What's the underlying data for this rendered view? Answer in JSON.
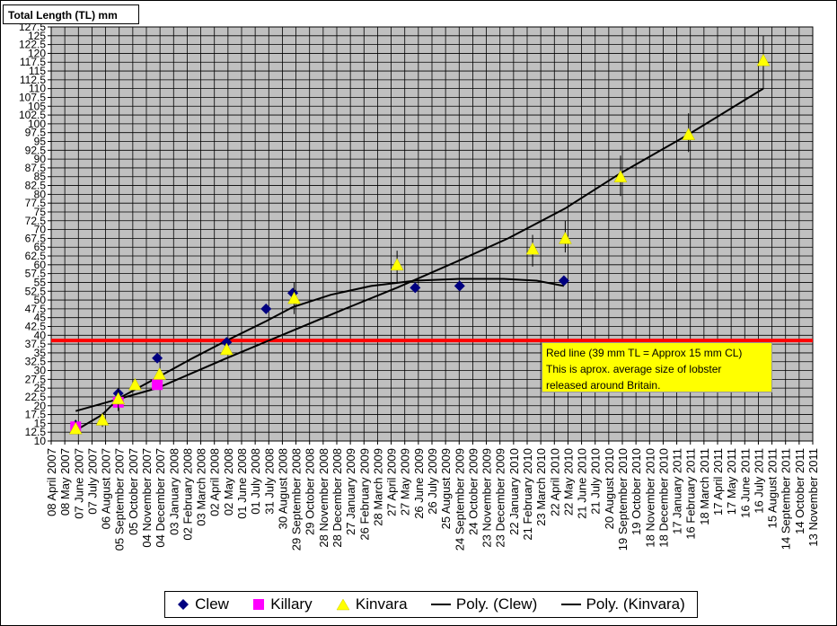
{
  "chart_data": {
    "type": "scatter",
    "ylabel": "Total Length (TL) mm",
    "xlabel": "",
    "ylim": [
      10,
      127.5
    ],
    "ystep": 2.5,
    "x_start": "2007-04-08",
    "x_end": "2011-11-13",
    "xtick_labels": [
      "08 April 2007",
      "08 May 2007",
      "07 June 2007",
      "07 July 2007",
      "06 August 2007",
      "05 September 2007",
      "05 October 2007",
      "04 November 2007",
      "04 December 2007",
      "03 January 2008",
      "02 February 2008",
      "03 March 2008",
      "02 April 2008",
      "02 May 2008",
      "01 June 2008",
      "01 July 2008",
      "31 July 2008",
      "30 August 2008",
      "29 September 2008",
      "29 October 2008",
      "28 November 2008",
      "28 December 2008",
      "27 January 2009",
      "26 February 2009",
      "28 March 2009",
      "27 April 2009",
      "27 May 2009",
      "26 June 2009",
      "26 July 2009",
      "25 August 2009",
      "24 September 2009",
      "24 October 2009",
      "23 November 2009",
      "23 December 2009",
      "22 January 2010",
      "21 February 2010",
      "23 March 2010",
      "22 April 2010",
      "22 May 2010",
      "21 June 2010",
      "21 July 2010",
      "20 August 2010",
      "19 September 2010",
      "19 October 2010",
      "18 November 2010",
      "18 December 2010",
      "17 January 2011",
      "16 February 2011",
      "18 March 2011",
      "17 April 2011",
      "17 May 2011",
      "16 June 2011",
      "16 July 2011",
      "15 August 2011",
      "14 September 2011",
      "14 October 2011",
      "13 November 2011"
    ],
    "grid": true,
    "legend_position": "bottom",
    "series": [
      {
        "name": "Clew",
        "marker": "diamond",
        "color": "#000080",
        "points": [
          {
            "x": "2007-06-01",
            "y": 14.5
          },
          {
            "x": "2007-09-03",
            "y": 23.5
          },
          {
            "x": "2007-11-28",
            "y": 33.5
          },
          {
            "x": "2008-04-29",
            "y": 38
          },
          {
            "x": "2008-07-25",
            "y": 47.5
          },
          {
            "x": "2008-09-22",
            "y": 52
          },
          {
            "x": "2009-06-19",
            "y": 53.5
          },
          {
            "x": "2009-09-25",
            "y": 54
          },
          {
            "x": "2010-05-13",
            "y": 55.5
          }
        ]
      },
      {
        "name": "Killary",
        "marker": "square",
        "color": "#ff00ff",
        "points": [
          {
            "x": "2007-06-01",
            "y": 14
          },
          {
            "x": "2007-09-03",
            "y": 21
          },
          {
            "x": "2007-11-28",
            "y": 26
          }
        ]
      },
      {
        "name": "Kinvara",
        "marker": "triangle",
        "color": "#ffff00",
        "points": [
          {
            "x": "2007-06-01",
            "y": 13.5,
            "err": [
              12,
              16
            ]
          },
          {
            "x": "2007-07-30",
            "y": 16,
            "err": [
              14,
              18
            ]
          },
          {
            "x": "2007-09-03",
            "y": 22,
            "err": [
              18.5,
              25
            ]
          },
          {
            "x": "2007-10-10",
            "y": 26
          },
          {
            "x": "2007-12-03",
            "y": 29
          },
          {
            "x": "2008-04-29",
            "y": 36
          },
          {
            "x": "2008-09-25",
            "y": 50.5,
            "err": [
              46,
              55
            ]
          },
          {
            "x": "2009-05-10",
            "y": 60,
            "err": [
              55,
              64
            ]
          },
          {
            "x": "2010-03-05",
            "y": 64.5,
            "err": [
              59.5,
              68.5
            ]
          },
          {
            "x": "2010-05-16",
            "y": 67.5,
            "err": [
              63.5,
              72.5
            ]
          },
          {
            "x": "2010-09-15",
            "y": 85,
            "err": [
              79.5,
              91
            ]
          },
          {
            "x": "2011-02-12",
            "y": 97,
            "err": [
              92,
              103
            ]
          },
          {
            "x": "2011-07-27",
            "y": 118,
            "err": [
              110,
              125
            ]
          }
        ]
      }
    ],
    "trendlines": [
      {
        "name": "Poly. (Clew)",
        "color": "#000000",
        "points": [
          {
            "x": "2007-06-01",
            "y": 13
          },
          {
            "x": "2007-07-30",
            "y": 17.5
          },
          {
            "x": "2007-09-03",
            "y": 22
          },
          {
            "x": "2007-11-28",
            "y": 28
          },
          {
            "x": "2008-02-14",
            "y": 33.5
          },
          {
            "x": "2008-04-29",
            "y": 38.5
          },
          {
            "x": "2008-07-25",
            "y": 44
          },
          {
            "x": "2008-09-22",
            "y": 48
          },
          {
            "x": "2008-12-15",
            "y": 51.5
          },
          {
            "x": "2009-03-14",
            "y": 54
          },
          {
            "x": "2009-06-19",
            "y": 55.5
          },
          {
            "x": "2009-09-25",
            "y": 56
          },
          {
            "x": "2009-12-31",
            "y": 56
          },
          {
            "x": "2010-03-14",
            "y": 55.5
          },
          {
            "x": "2010-05-13",
            "y": 54
          }
        ]
      },
      {
        "name": "Poly. (Kinvara)",
        "color": "#000000",
        "points": [
          {
            "x": "2007-06-01",
            "y": 18.5
          },
          {
            "x": "2007-11-28",
            "y": 25
          },
          {
            "x": "2008-04-29",
            "y": 33.5
          },
          {
            "x": "2008-09-25",
            "y": 41.5
          },
          {
            "x": "2009-01-15",
            "y": 47.5
          },
          {
            "x": "2009-05-10",
            "y": 53.5
          },
          {
            "x": "2009-09-20",
            "y": 61
          },
          {
            "x": "2010-01-10",
            "y": 67.5
          },
          {
            "x": "2010-05-16",
            "y": 76
          },
          {
            "x": "2010-09-15",
            "y": 86
          },
          {
            "x": "2011-02-12",
            "y": 97
          },
          {
            "x": "2011-07-27",
            "y": 110
          }
        ]
      }
    ],
    "reference_line": {
      "y": 38.5,
      "color": "#ff0000"
    },
    "annotation": {
      "lines": [
        "Red line (39 mm TL = Approx 15 mm CL)",
        "This is aprox. average size of lobster",
        "released around Britain."
      ]
    }
  },
  "legend": {
    "clew": "Clew",
    "killary": "Killary",
    "kinvara": "Kinvara",
    "poly_clew": "Poly. (Clew)",
    "poly_kinvara": "Poly. (Kinvara)"
  }
}
